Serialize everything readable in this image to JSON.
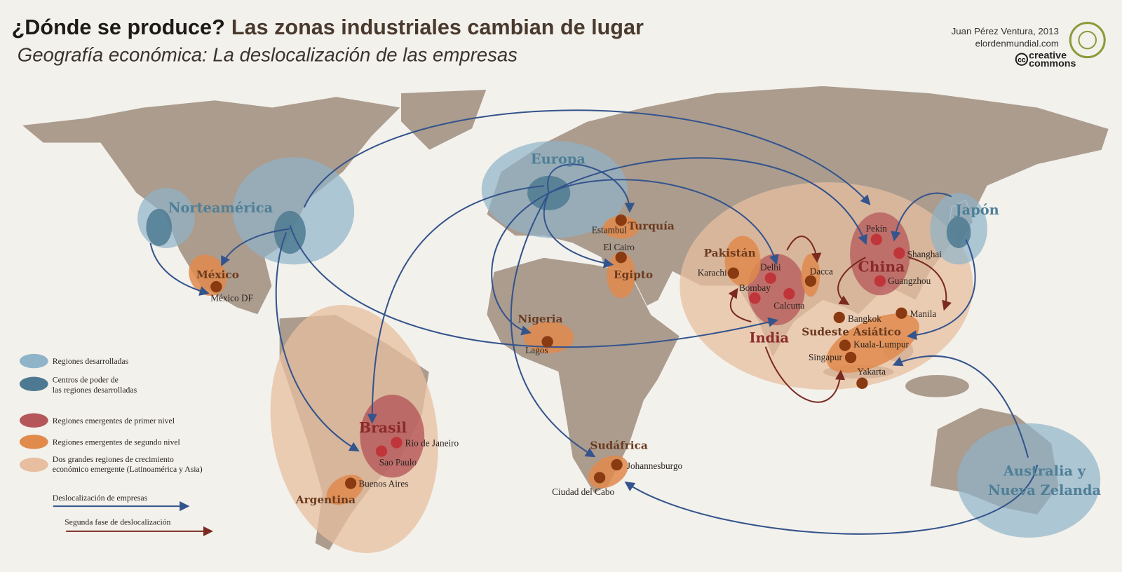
{
  "header": {
    "title_question": "¿Dónde se produce?",
    "title_rest": "Las zonas industriales cambian de lugar",
    "subtitle": "Geografía económica: La deslocalización de las empresas"
  },
  "credits": {
    "author": "Juan Pérez Ventura, 2013",
    "site": "elordenmundial.com",
    "license": [
      "creative",
      "commons"
    ],
    "cc": "cc"
  },
  "regions": [
    "Norteamérica",
    "Europa",
    "Japón",
    "Australia y",
    "Nueva Zelanda",
    "México",
    "Turquía",
    "Egipto",
    "Nigeria",
    "Sudáfrica",
    "Pakistán",
    "Sudeste Asiático",
    "Argentina",
    "Brasil",
    "China",
    "India"
  ],
  "cities": [
    "México DF",
    "Estambul",
    "El Cairo",
    "Lagos",
    "Johannesburgo",
    "Ciudad del Cabo",
    "Karachi",
    "Delhi",
    "Bombay",
    "Calcutta",
    "Dacca",
    "Pekín",
    "Shanghai",
    "Guangzhou",
    "Bangkok",
    "Manila",
    "Kuala-Lumpur",
    "Singapur",
    "Yakarta",
    "Rio de Janeiro",
    "Sao Paulo",
    "Buenos Aires"
  ],
  "legend": [
    [
      "Regiones desarrolladas"
    ],
    [
      "Centros de poder de",
      "las regiones desarrolladas"
    ],
    [
      "Regiones emergentes de primer nivel"
    ],
    [
      "Regiones emergentes de segundo nivel"
    ],
    [
      "Dos grandes regiones de crecimiento",
      "económico emergente (Latinoamérica y Asia)"
    ],
    [
      "Deslocalización de empresas"
    ],
    [
      "Segunda fase de deslocalización"
    ]
  ]
}
